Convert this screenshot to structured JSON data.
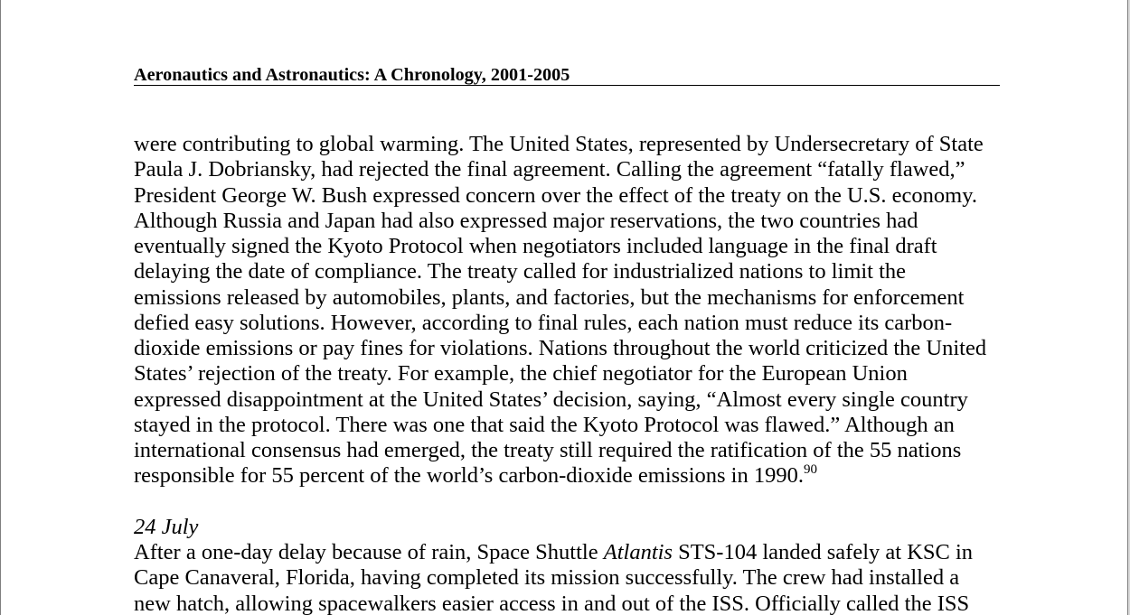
{
  "document": {
    "running_header": "Aeronautics and Astronautics: A Chronology, 2001-2005",
    "paragraph_1": {
      "lines": [
        "were contributing to global warming. The United States, represented by Undersecretary of State",
        "Paula J. Dobriansky, had rejected the final agreement. Calling the agreement “fatally flawed,”",
        "President George W. Bush expressed concern over the effect of the treaty on the U.S. economy.",
        "Although Russia and Japan had also expressed major reservations, the two countries had",
        "eventually signed the Kyoto Protocol when negotiators included language in the final draft",
        "delaying the date of compliance. The treaty called for industrialized nations to limit the",
        "emissions released by automobiles, plants, and factories, but the mechanisms for enforcement",
        "defied easy solutions. However, according to final rules, each nation must reduce its carbon-",
        "dioxide emissions or pay fines for violations. Nations throughout the world criticized the United",
        "States’ rejection of the treaty. For example, the chief negotiator for the European Union",
        "expressed disappointment at the United States’ decision, saying, “Almost every single country",
        "stayed in the protocol. There was one that said the Kyoto Protocol was flawed.” Although an",
        "international consensus had emerged, the treaty still required the ratification of the 55 nations",
        "responsible for 55 percent of the world’s carbon-dioxide emissions in 1990."
      ],
      "footnote_ref": "90"
    },
    "entry": {
      "date": "24 July",
      "line_1_before": "After a one-day delay because of rain, Space Shuttle ",
      "line_1_italic": "Atlantis",
      "line_1_after": " STS-104 landed safely at KSC in",
      "lines": [
        "Cape Canaveral, Florida, having completed its mission successfully. The crew had installed a",
        "new hatch, allowing spacewalkers easier access in and out of the ISS. Officially called the ISS"
      ]
    }
  }
}
